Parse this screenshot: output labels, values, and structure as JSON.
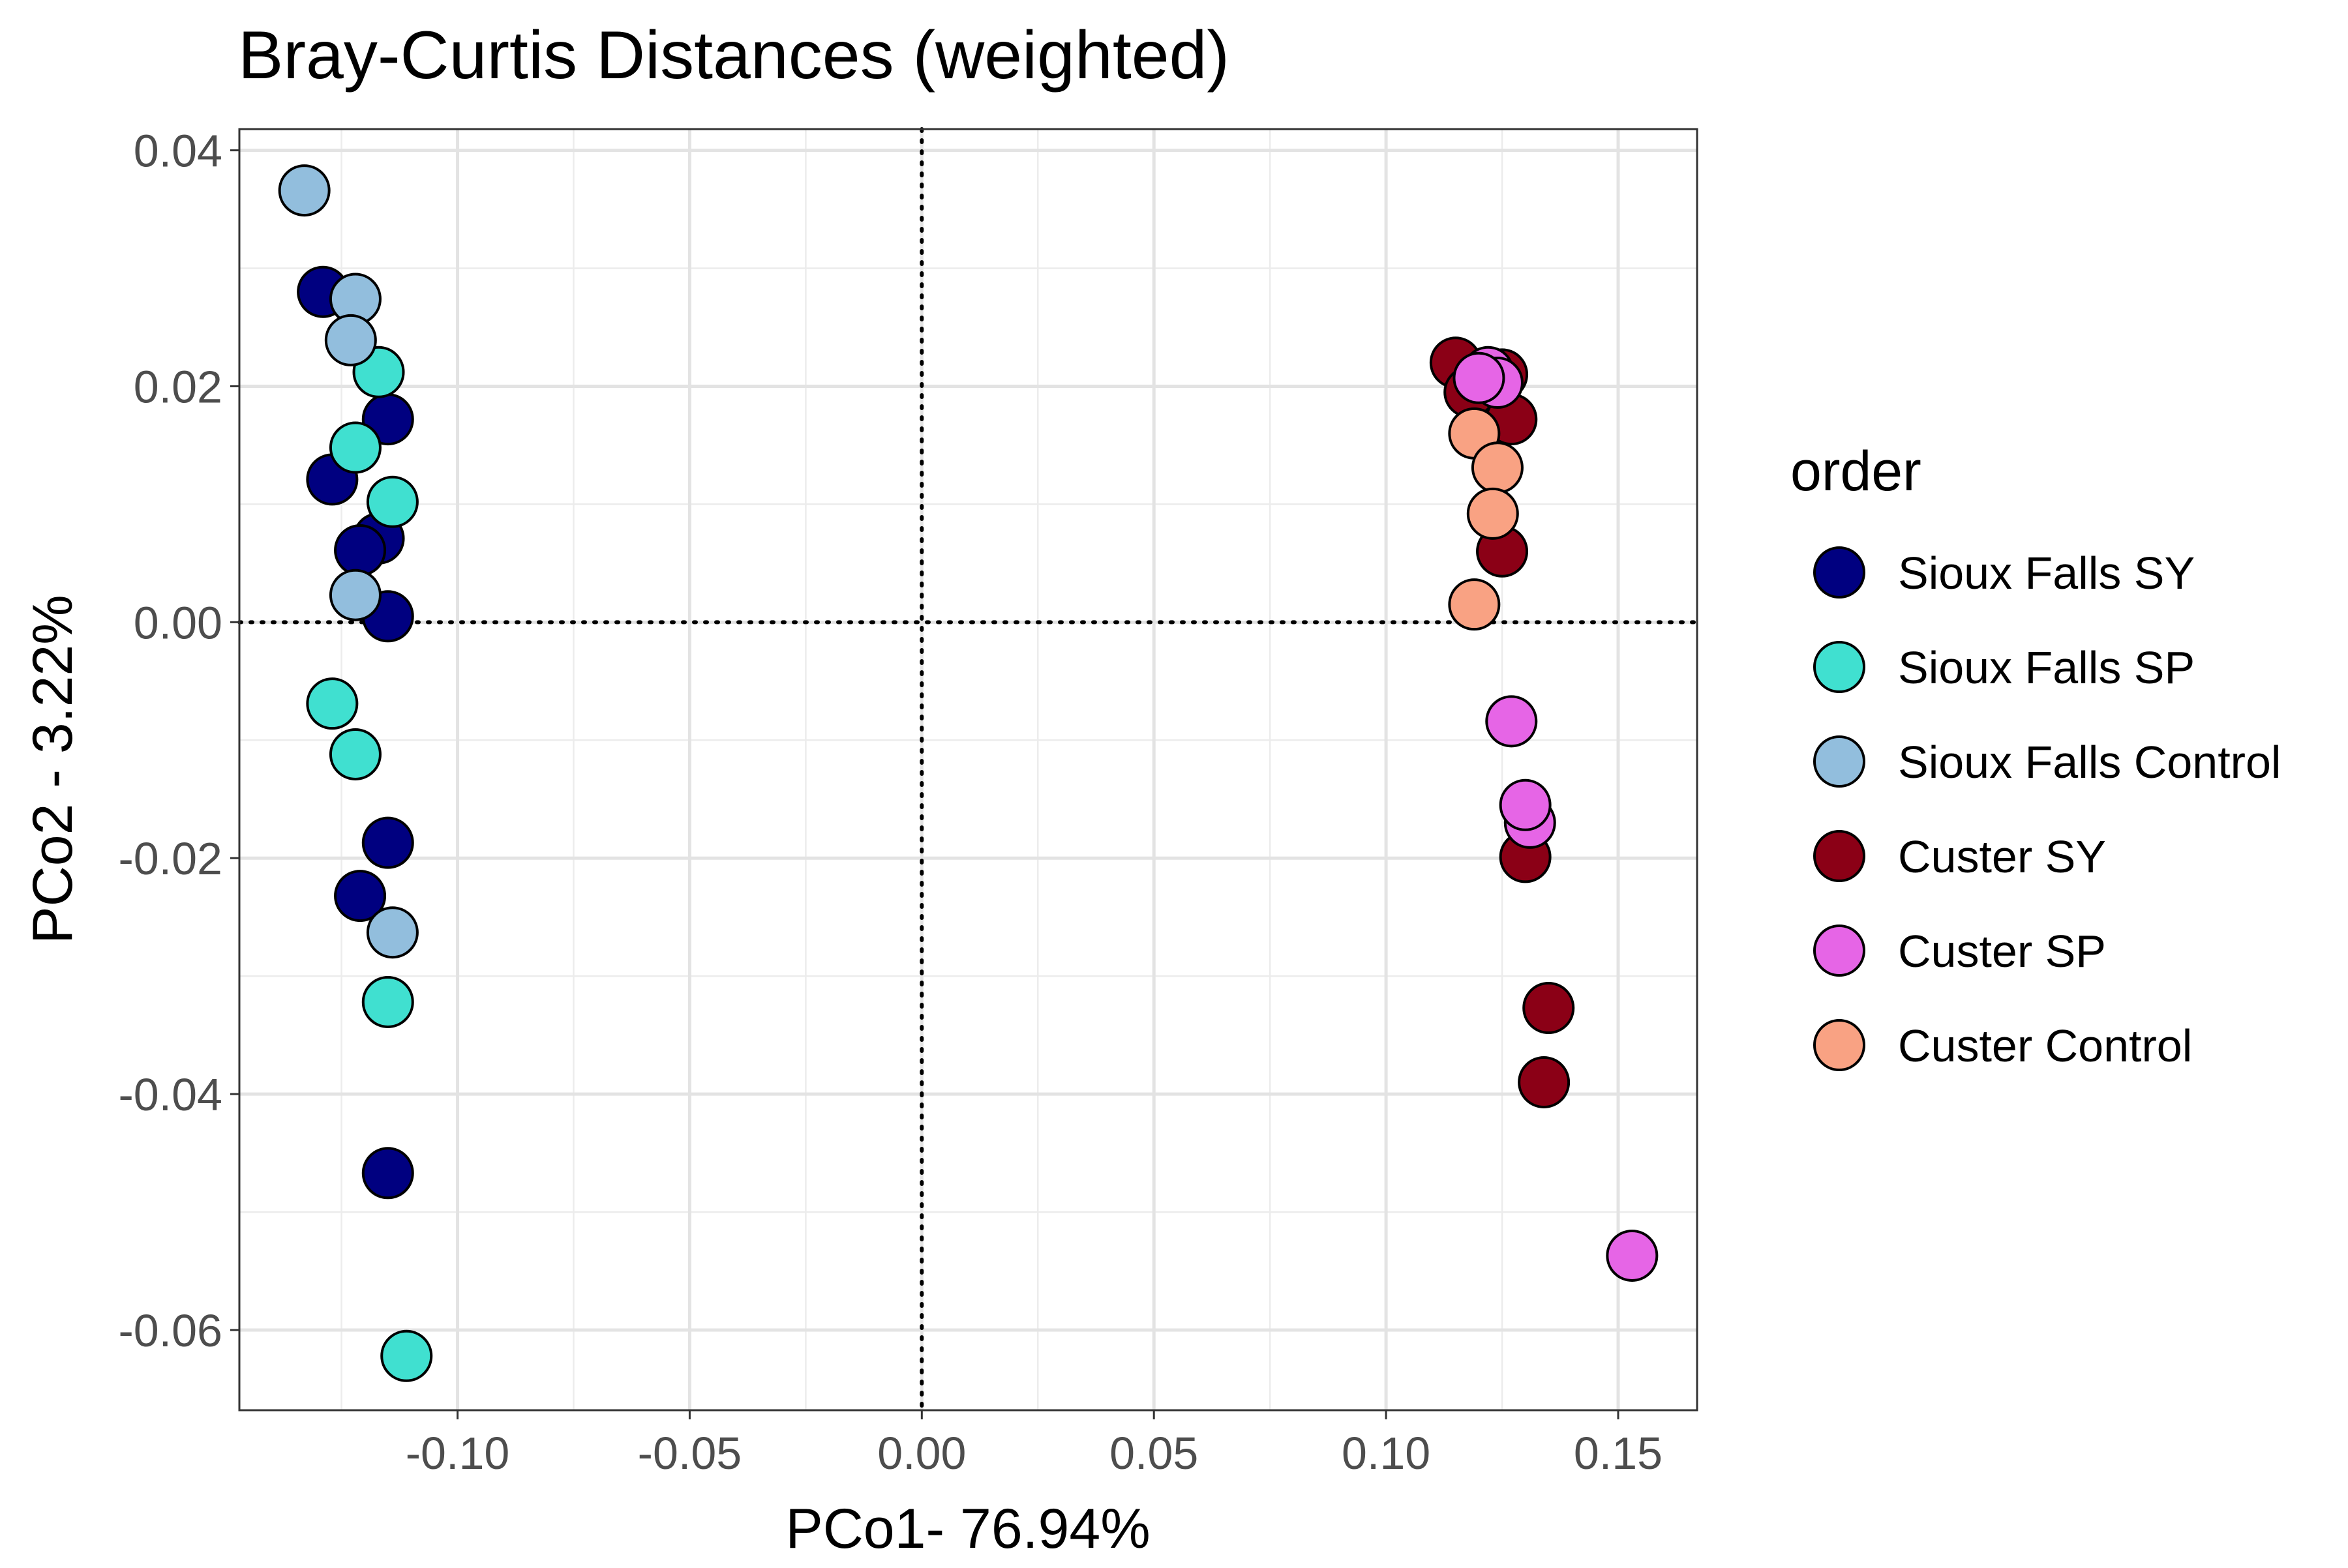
{
  "chart_data": {
    "type": "scatter",
    "title": "Bray-Curtis Distances (weighted)",
    "xlabel": "PCo1- 76.94%",
    "ylabel": "PCo2 - 3.22%",
    "xlim": [
      -0.147,
      0.167
    ],
    "ylim": [
      -0.0668,
      0.0418
    ],
    "x_ticks": [
      -0.1,
      -0.05,
      0.0,
      0.05,
      0.1,
      0.15
    ],
    "x_tick_labels": [
      "-0.10",
      "-0.05",
      "0.00",
      "0.05",
      "0.10",
      "0.15"
    ],
    "y_ticks": [
      0.04,
      0.02,
      0.0,
      -0.02,
      -0.04,
      -0.06
    ],
    "y_tick_labels": [
      "0.04",
      "0.02",
      "0.00",
      "-0.02",
      "-0.04",
      "-0.06"
    ],
    "grid": true,
    "reference_lines": {
      "x": 0,
      "y": 0,
      "style": "dotted"
    },
    "legend": {
      "title": "order",
      "position": "right"
    },
    "series": [
      {
        "name": "Sioux Falls SY",
        "color": "#000080",
        "points": [
          [
            -0.129,
            0.028
          ],
          [
            -0.115,
            0.0172
          ],
          [
            -0.127,
            0.0121
          ],
          [
            -0.117,
            0.0071
          ],
          [
            -0.121,
            0.0061
          ],
          [
            -0.115,
            0.0005
          ],
          [
            -0.115,
            -0.0187
          ],
          [
            -0.121,
            -0.0232
          ],
          [
            -0.115,
            -0.0467
          ]
        ]
      },
      {
        "name": "Sioux Falls SP",
        "color": "#40E0D0",
        "points": [
          [
            -0.117,
            0.0212
          ],
          [
            -0.122,
            0.0148
          ],
          [
            -0.114,
            0.0102
          ],
          [
            -0.127,
            -0.0069
          ],
          [
            -0.122,
            -0.0112
          ],
          [
            -0.115,
            -0.0322
          ],
          [
            -0.111,
            -0.0622
          ]
        ]
      },
      {
        "name": "Sioux Falls Control",
        "color": "#92BEDD",
        "points": [
          [
            -0.133,
            0.0366
          ],
          [
            -0.122,
            0.0274
          ],
          [
            -0.123,
            0.0239
          ],
          [
            -0.122,
            0.0023
          ],
          [
            -0.114,
            -0.0263
          ]
        ]
      },
      {
        "name": "Custer SY",
        "color": "#8B0016",
        "points": [
          [
            0.115,
            0.022
          ],
          [
            0.125,
            0.021
          ],
          [
            0.118,
            0.0195
          ],
          [
            0.127,
            0.0172
          ],
          [
            0.125,
            0.006
          ],
          [
            0.13,
            -0.0199
          ],
          [
            0.135,
            -0.0327
          ],
          [
            0.134,
            -0.039
          ]
        ]
      },
      {
        "name": "Custer SP",
        "color": "#E665E6",
        "points": [
          [
            0.122,
            0.0212
          ],
          [
            0.124,
            0.0203
          ],
          [
            0.12,
            0.0207
          ],
          [
            0.127,
            -0.0084
          ],
          [
            0.131,
            -0.017
          ],
          [
            0.13,
            -0.0155
          ],
          [
            0.153,
            -0.0537
          ]
        ]
      },
      {
        "name": "Custer Control",
        "color": "#F9A283",
        "points": [
          [
            0.119,
            0.016
          ],
          [
            0.124,
            0.0131
          ],
          [
            0.123,
            0.0092
          ],
          [
            0.119,
            0.0015
          ]
        ]
      }
    ]
  }
}
